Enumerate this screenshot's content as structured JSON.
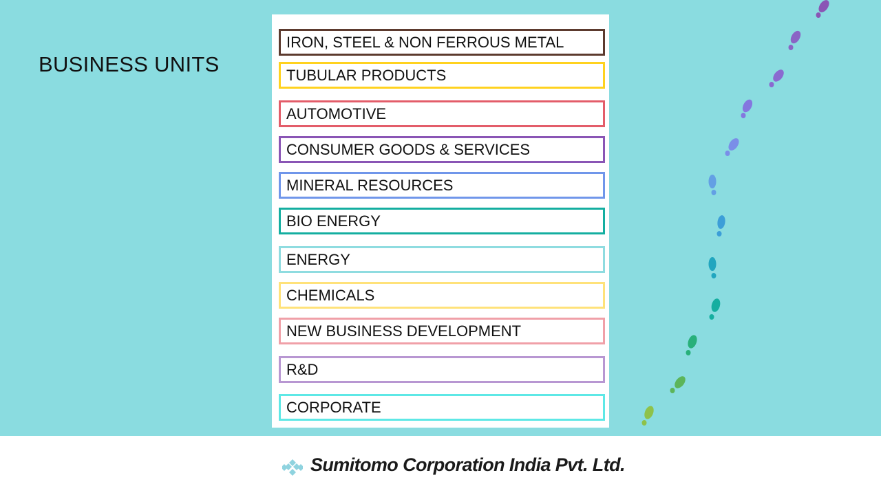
{
  "slide": {
    "title": "BUSINESS UNITS"
  },
  "units": [
    {
      "label": "IRON, STEEL & NON FERROUS METAL",
      "color": "#5c3a2e"
    },
    {
      "label": "TUBULAR PRODUCTS",
      "color": "#ffd21f"
    },
    {
      "label": "AUTOMOTIVE",
      "color": "#e35d6a"
    },
    {
      "label": "CONSUMER GOODS & SERVICES",
      "color": "#8a55b5"
    },
    {
      "label": "MINERAL RESOURCES",
      "color": "#7096ea"
    },
    {
      "label": "BIO ENERGY",
      "color": "#14aea0"
    },
    {
      "label": "ENERGY",
      "color": "#8fdce0"
    },
    {
      "label": "CHEMICALS",
      "color": "#ffe27a"
    },
    {
      "label": "NEW BUSINESS DEVELOPMENT",
      "color": "#f0a0a8"
    },
    {
      "label": "R&D",
      "color": "#b897d2"
    },
    {
      "label": "CORPORATE",
      "color": "#5ee8e6"
    }
  ],
  "decoration": {
    "icon": "footprints-icon"
  },
  "footer": {
    "company": "Sumitomo Corporation India Pvt. Ltd.",
    "logo_icon": "sumitomo-logo-icon"
  }
}
